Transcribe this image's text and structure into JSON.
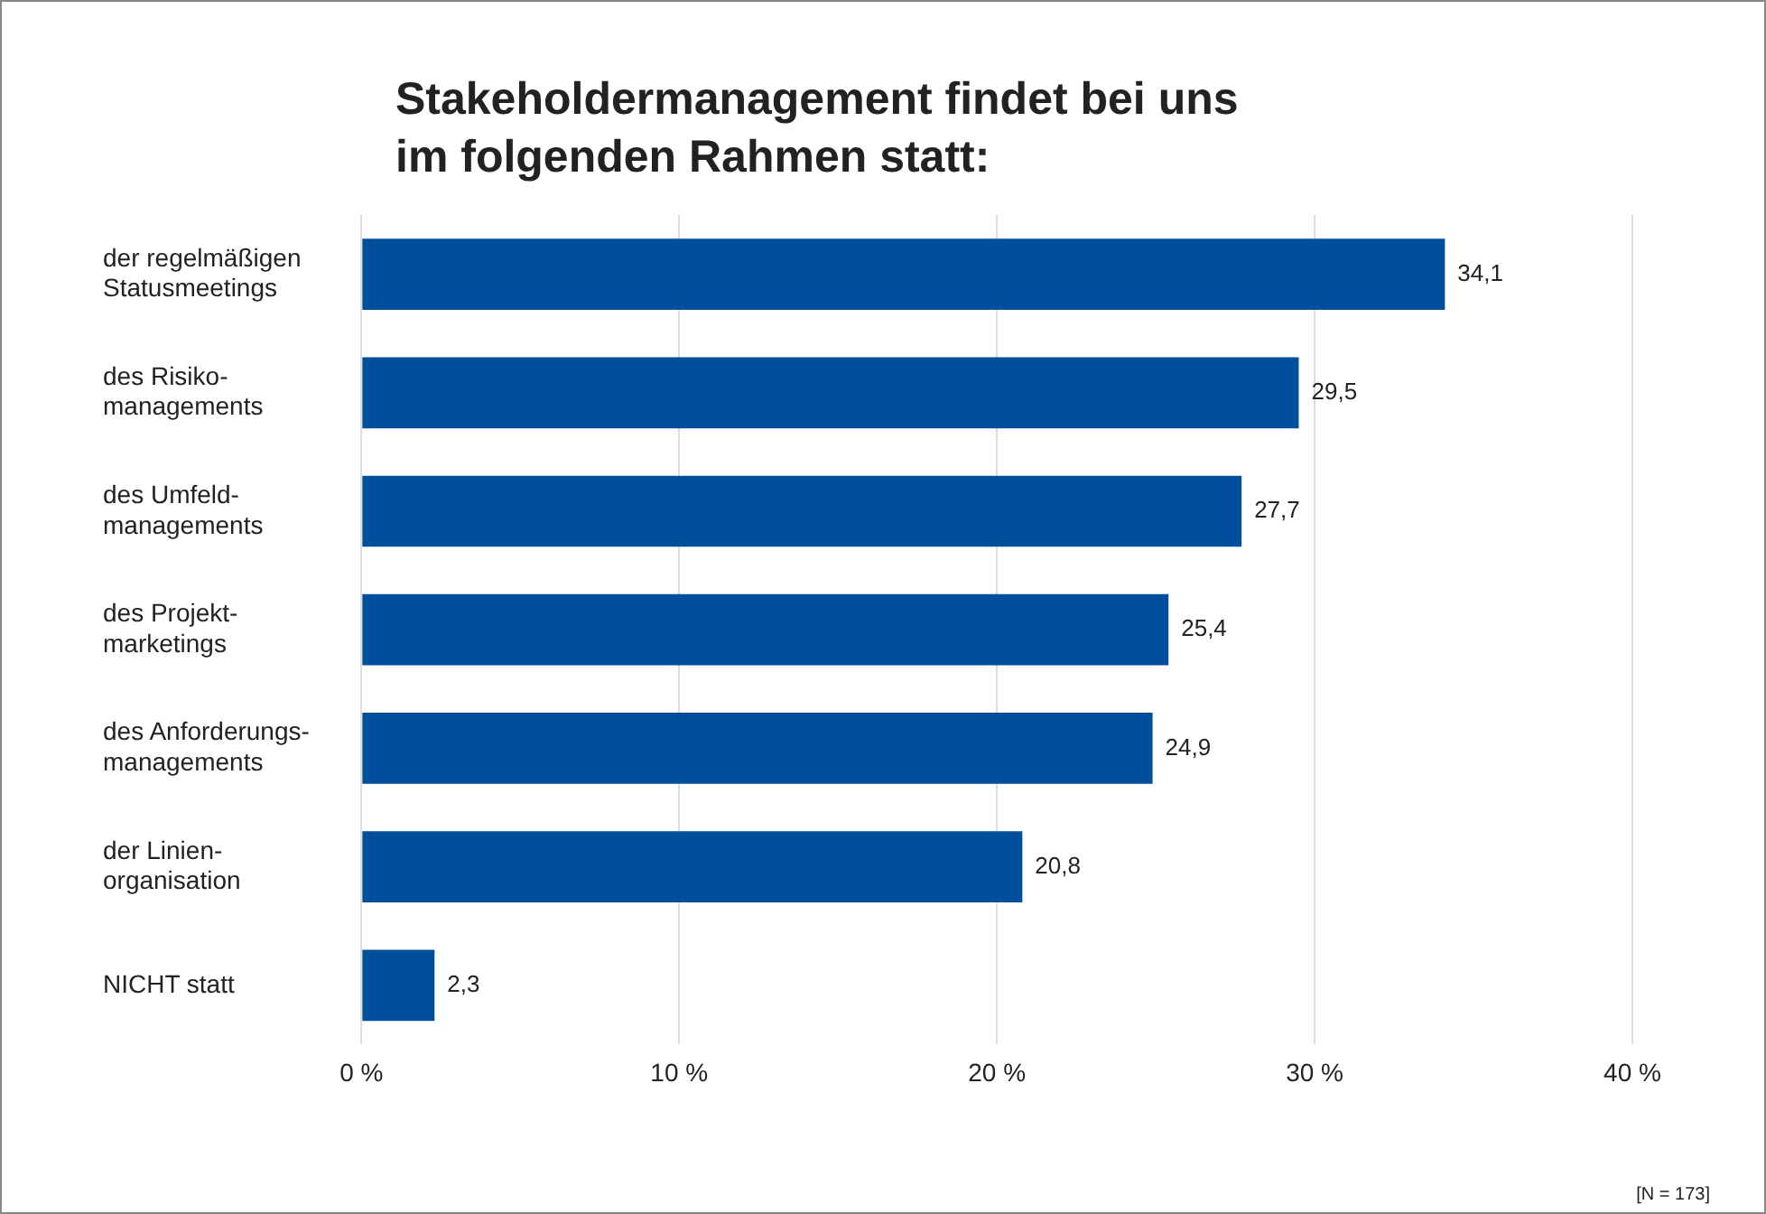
{
  "chart_data": {
    "type": "bar",
    "orientation": "horizontal",
    "title": "Stakeholdermanagement findet bei uns\nim folgenden Rahmen statt:",
    "categories": [
      "der regelmäßigen\nStatusmeetings",
      "des Risiko-\nmanagements",
      "des Umfeld-\nmanagements",
      "des Projekt-\nmarketings",
      "des Anforderungs-\nmanagements",
      "der Linien-\norganisation",
      "NICHT statt"
    ],
    "values": [
      34.1,
      29.5,
      27.7,
      25.4,
      24.9,
      20.8,
      2.3
    ],
    "color": "#004f9c",
    "xlim": [
      0,
      40
    ],
    "xticks": [
      {
        "value": 0,
        "label": "0 %"
      },
      {
        "value": 10,
        "label": "10 %"
      },
      {
        "value": 20,
        "label": "20 %"
      },
      {
        "value": 30,
        "label": "30 %"
      },
      {
        "value": 40,
        "label": "40 %"
      }
    ],
    "value_labels": [
      "34,1",
      "29,5",
      "27,7",
      "25,4",
      "24,9",
      "20,8",
      "2,3"
    ],
    "grid": "x",
    "legend": false,
    "annotations": [
      "[N = 173]"
    ]
  }
}
